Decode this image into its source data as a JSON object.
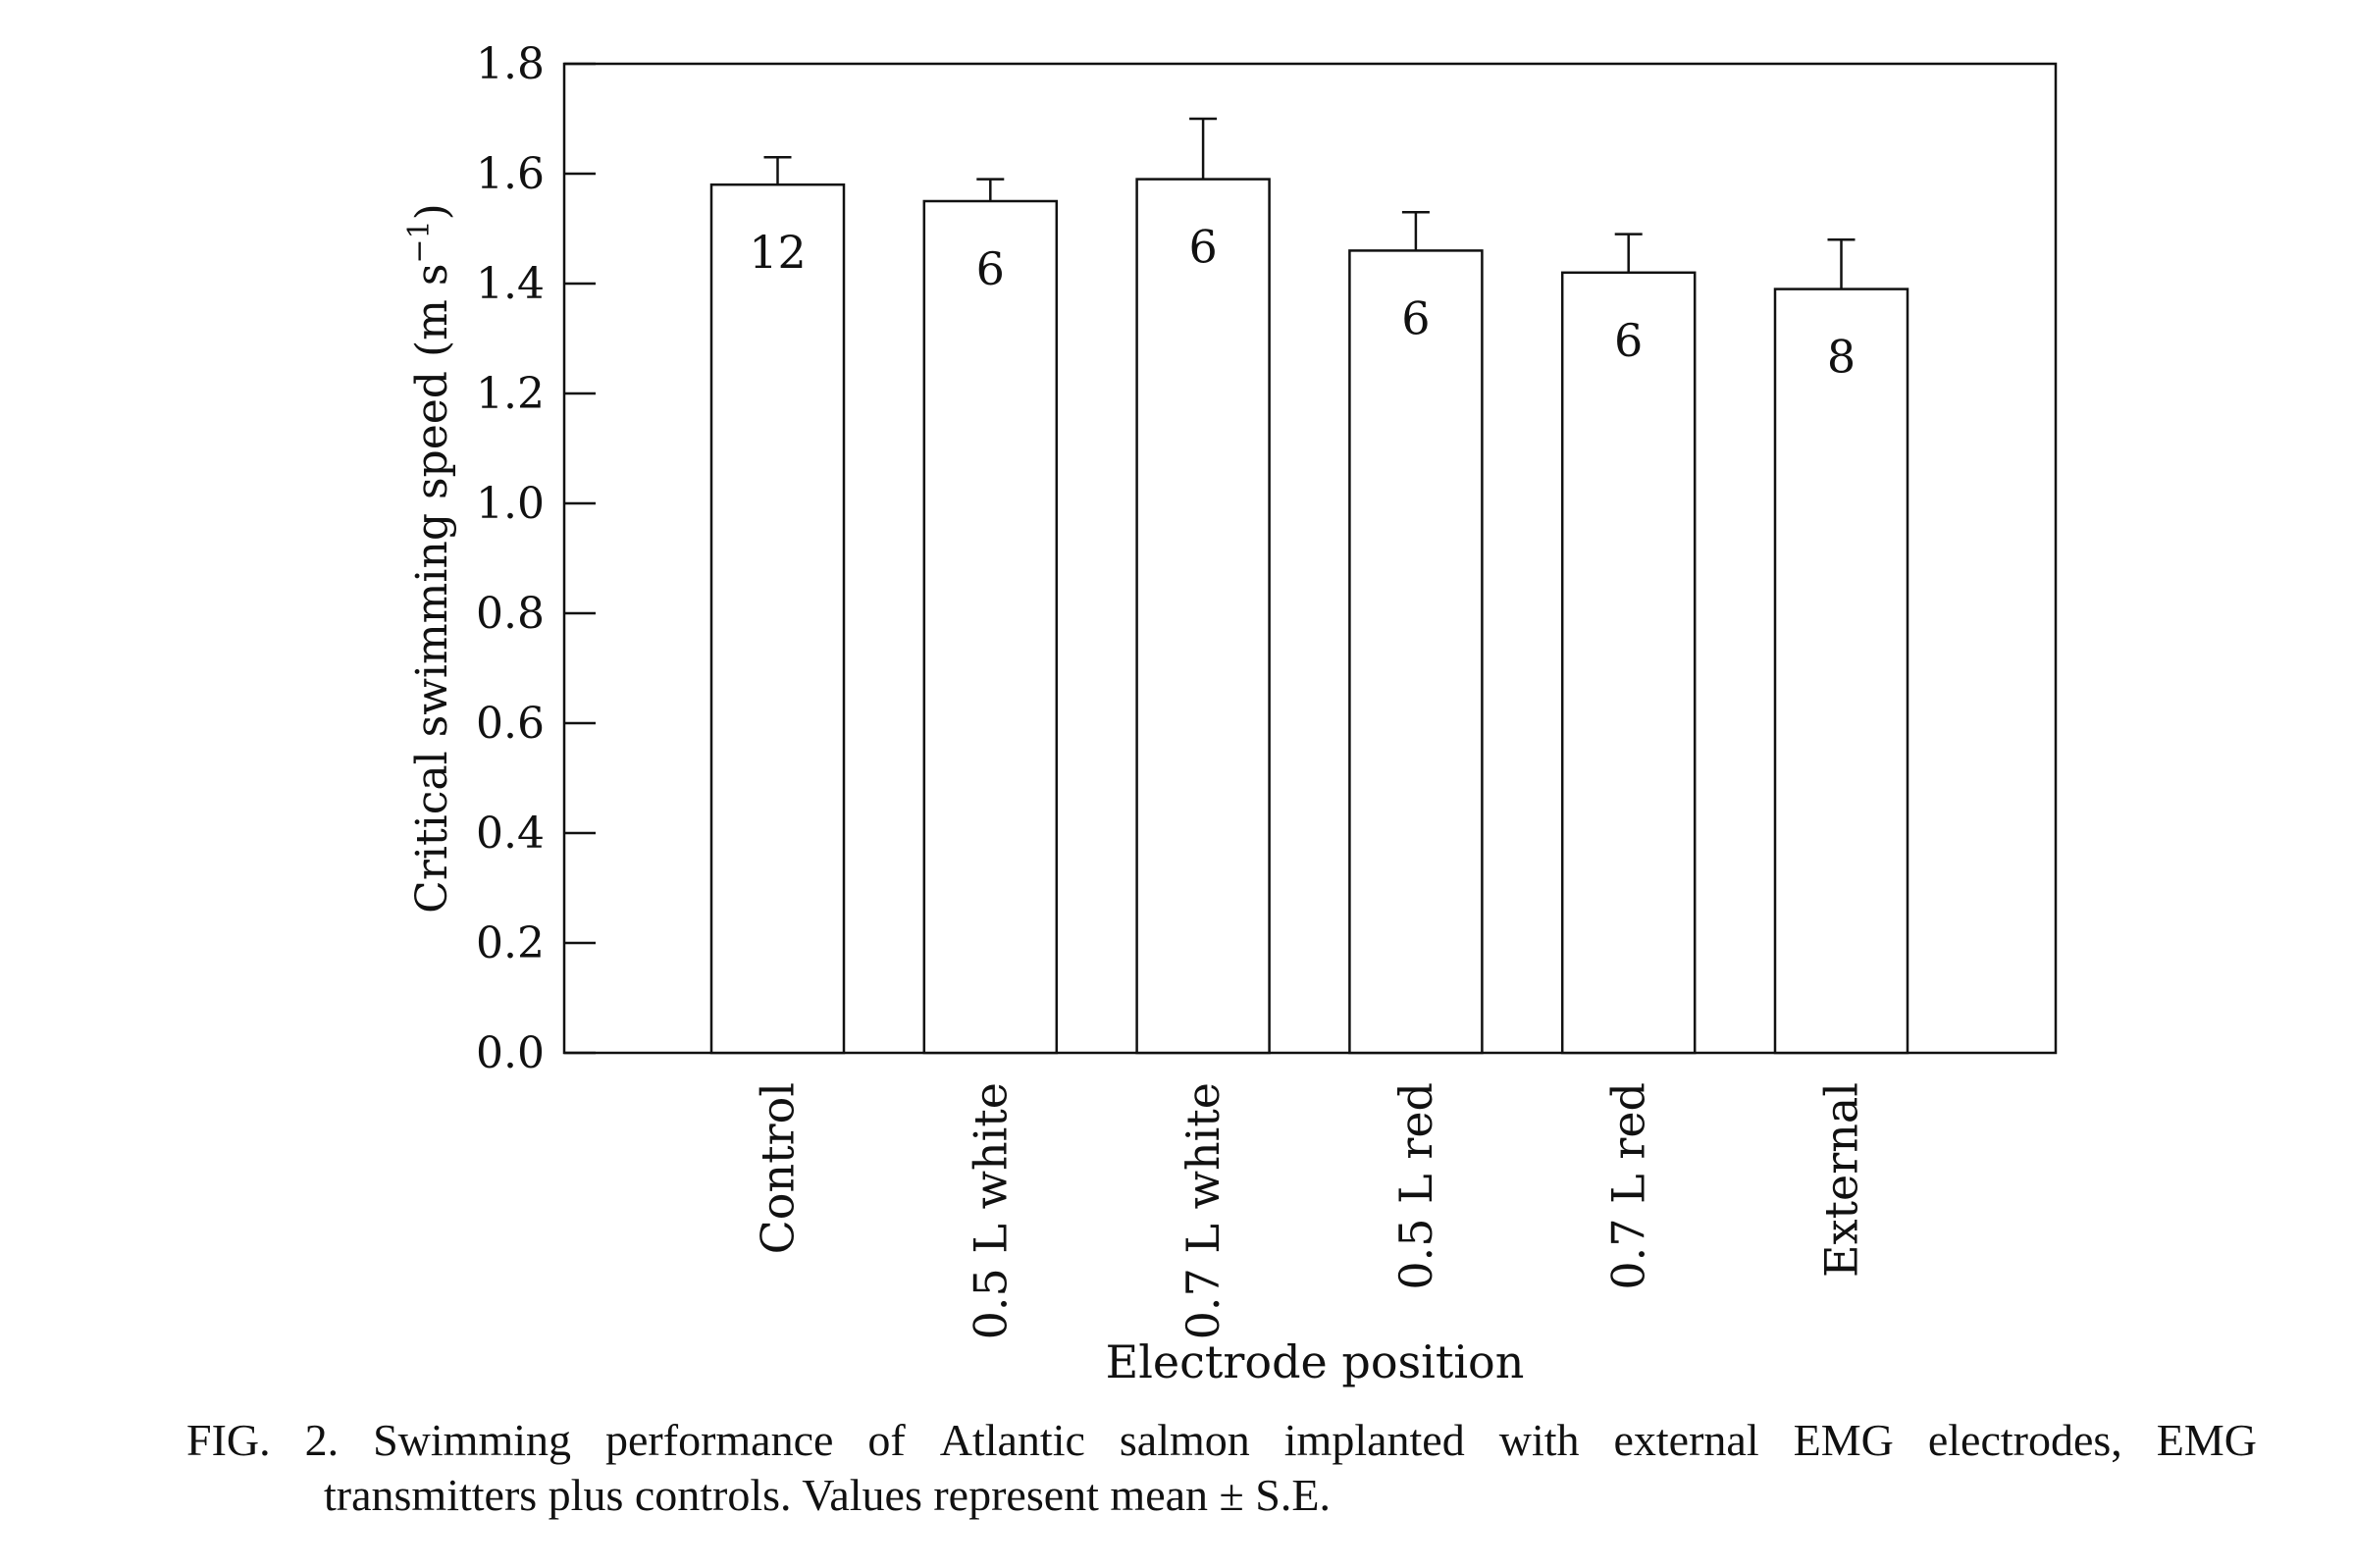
{
  "chart_data": {
    "type": "bar",
    "categories": [
      "Control",
      "0.5 L white",
      "0.7 L white",
      "0.5 L red",
      "0.7 L red",
      "External"
    ],
    "values": [
      1.58,
      1.55,
      1.59,
      1.46,
      1.42,
      1.39
    ],
    "errors": [
      0.05,
      0.04,
      0.11,
      0.07,
      0.07,
      0.09
    ],
    "n_labels": [
      "12",
      "6",
      "6",
      "6",
      "6",
      "8"
    ],
    "title": "",
    "xlabel": "Electrode position",
    "ylabel": "Critical swimming speed (m s",
    "ylabel_sup": "−1",
    "ylabel_close": ")",
    "ylim": [
      0.0,
      1.8
    ],
    "yticks": [
      "0.0",
      "0.2",
      "0.4",
      "0.6",
      "0.8",
      "1.0",
      "1.2",
      "1.4",
      "1.6",
      "1.8"
    ],
    "grid": false,
    "legend": "none"
  },
  "caption": {
    "line1_words": [
      "FIG.",
      "2.",
      "Swimming",
      "performance",
      "of",
      "Atlantic",
      "salmon",
      "implanted",
      "with",
      "external",
      "EMG",
      "electrodes,",
      "EMG"
    ],
    "line2": "transmitters plus controls.  Values represent mean ± ",
    "se": "S.E."
  }
}
